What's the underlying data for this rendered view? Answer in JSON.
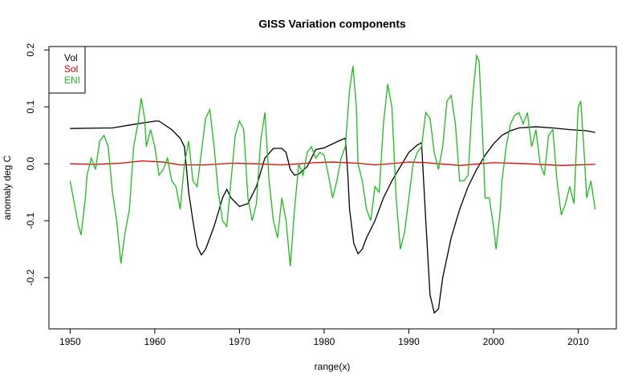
{
  "chart_data": {
    "type": "line",
    "title": "GISS Variation components",
    "xlabel": "range(x)",
    "ylabel": "anomaly deg C",
    "xlim": [
      1947.5,
      2014.5
    ],
    "ylim": [
      -0.29,
      0.206
    ],
    "xticks": [
      1950,
      1960,
      1970,
      1980,
      1990,
      2000,
      2010
    ],
    "yticks": [
      -0.2,
      -0.1,
      {
        "value": 0,
        "label": "0.0"
      },
      0.1,
      0.2
    ],
    "legend": "topleft",
    "series": [
      {
        "name": "Vol",
        "color": "#000000",
        "x": [
          1950,
          1955,
          1957,
          1960,
          1960.5,
          1962,
          1963,
          1963.5,
          1964,
          1964.5,
          1965,
          1965.5,
          1966,
          1967,
          1968,
          1968.5,
          1969,
          1970,
          1971,
          1972,
          1973,
          1974,
          1975,
          1975.5,
          1976,
          1976.5,
          1977,
          1978,
          1979,
          1980,
          1981,
          1982,
          1982.5,
          1982.8,
          1983,
          1983.5,
          1984,
          1984.5,
          1985,
          1986,
          1987,
          1988,
          1989,
          1990,
          1991,
          1991.5,
          1992,
          1992.5,
          1993,
          1993.5,
          1994,
          1995,
          1996,
          1997,
          1998,
          1999,
          2000,
          2001,
          2002,
          2003,
          2005,
          2007,
          2009,
          2011,
          2012
        ],
        "values": [
          0.062,
          0.063,
          0.068,
          0.075,
          0.075,
          0.06,
          0.045,
          0.03,
          -0.05,
          -0.1,
          -0.145,
          -0.16,
          -0.15,
          -0.11,
          -0.06,
          -0.045,
          -0.06,
          -0.075,
          -0.07,
          -0.04,
          0.01,
          0.027,
          0.027,
          0.02,
          -0.01,
          -0.02,
          -0.018,
          -0.005,
          0.025,
          0.028,
          0.035,
          0.042,
          0.045,
          -0.02,
          -0.08,
          -0.14,
          -0.158,
          -0.15,
          -0.13,
          -0.1,
          -0.06,
          -0.03,
          -0.005,
          0.02,
          0.033,
          0.037,
          -0.1,
          -0.23,
          -0.262,
          -0.255,
          -0.2,
          -0.13,
          -0.08,
          -0.04,
          -0.01,
          0.015,
          0.035,
          0.05,
          0.058,
          0.063,
          0.065,
          0.063,
          0.06,
          0.058,
          0.055
        ]
      },
      {
        "name": "Sol",
        "color": "#df0000",
        "x": [
          1950,
          1953,
          1956,
          1958.5,
          1961,
          1963,
          1966,
          1969,
          1972,
          1975,
          1979,
          1981,
          1984,
          1986,
          1990,
          1992,
          1996,
          2000,
          2004,
          2008,
          2012
        ],
        "values": [
          0,
          -0.001,
          0.001,
          0.005,
          0.003,
          -0.002,
          -0.002,
          0.001,
          0,
          -0.002,
          0.002,
          0.003,
          0.001,
          -0.002,
          0.003,
          0.002,
          -0.003,
          0.002,
          0,
          -0.003,
          -0.001
        ]
      },
      {
        "name": "ENI",
        "color": "#1cbd1c",
        "x": [
          1950,
          1950.5,
          1951,
          1951.3,
          1951.8,
          1952,
          1952.5,
          1953,
          1953.5,
          1954,
          1954.5,
          1955,
          1955.5,
          1956,
          1956.5,
          1957,
          1957.5,
          1958,
          1958.4,
          1958.8,
          1959,
          1959.5,
          1960,
          1960.5,
          1961,
          1961.5,
          1962,
          1962.5,
          1963,
          1963.5,
          1964,
          1964.5,
          1965,
          1965.5,
          1966,
          1966.5,
          1967,
          1967.5,
          1968,
          1968.5,
          1969,
          1969.5,
          1970,
          1970.5,
          1971,
          1971.5,
          1972,
          1972.5,
          1973,
          1973.5,
          1974,
          1974.5,
          1975,
          1975.5,
          1976,
          1976.5,
          1977,
          1977.5,
          1978,
          1978.5,
          1979,
          1979.5,
          1980,
          1980.5,
          1981,
          1981.5,
          1982,
          1982.5,
          1983,
          1983.4,
          1983.8,
          1984,
          1984.5,
          1985,
          1985.5,
          1986,
          1986.5,
          1987,
          1987.5,
          1988,
          1988.5,
          1989,
          1989.5,
          1990,
          1990.5,
          1991,
          1991.5,
          1992,
          1992.5,
          1993,
          1993.5,
          1994,
          1994.5,
          1995,
          1995.5,
          1996,
          1996.5,
          1997,
          1997.5,
          1998,
          1998.3,
          1998.8,
          1999,
          1999.5,
          2000,
          2000.3,
          2000.8,
          2001,
          2001.5,
          2002,
          2002.5,
          2003,
          2003.5,
          2004,
          2004.5,
          2005,
          2005.5,
          2006,
          2006.5,
          2007,
          2007.5,
          2008,
          2008.5,
          2009,
          2009.5,
          2010,
          2010.3,
          2010.7,
          2011,
          2011.5,
          2012
        ],
        "values": [
          -0.03,
          -0.07,
          -0.11,
          -0.125,
          -0.06,
          -0.02,
          0.01,
          -0.01,
          0.04,
          0.05,
          0.03,
          -0.05,
          -0.1,
          -0.175,
          -0.12,
          -0.08,
          0.03,
          0.07,
          0.115,
          0.08,
          0.03,
          0.06,
          0.03,
          -0.02,
          -0.01,
          0.01,
          -0.03,
          -0.04,
          -0.08,
          0.0,
          0.04,
          -0.03,
          -0.04,
          0.02,
          0.08,
          0.095,
          0.03,
          -0.05,
          -0.1,
          -0.11,
          -0.03,
          0.05,
          0.075,
          0.06,
          -0.06,
          -0.1,
          -0.07,
          0.04,
          0.09,
          -0.03,
          -0.1,
          -0.13,
          -0.06,
          -0.1,
          -0.18,
          -0.08,
          0.0,
          -0.02,
          0.02,
          0.03,
          0.01,
          0.02,
          0.015,
          -0.02,
          -0.06,
          -0.03,
          0.01,
          0.03,
          0.13,
          0.172,
          0.1,
          0.0,
          -0.03,
          -0.08,
          -0.1,
          -0.04,
          -0.05,
          0.07,
          0.14,
          0.1,
          -0.06,
          -0.15,
          -0.12,
          -0.06,
          0.0,
          0.02,
          0.03,
          0.09,
          0.08,
          0.02,
          -0.01,
          0.03,
          0.11,
          0.12,
          0.07,
          -0.03,
          -0.03,
          -0.02,
          0.11,
          0.19,
          0.18,
          0.02,
          -0.06,
          -0.06,
          -0.11,
          -0.15,
          -0.08,
          -0.03,
          0.03,
          0.07,
          0.085,
          0.09,
          0.07,
          0.09,
          0.03,
          0.06,
          0.0,
          -0.02,
          0.05,
          0.06,
          -0.03,
          -0.09,
          -0.07,
          -0.04,
          -0.07,
          0.1,
          0.11,
          0.02,
          -0.06,
          -0.03,
          -0.08
        ]
      }
    ]
  }
}
